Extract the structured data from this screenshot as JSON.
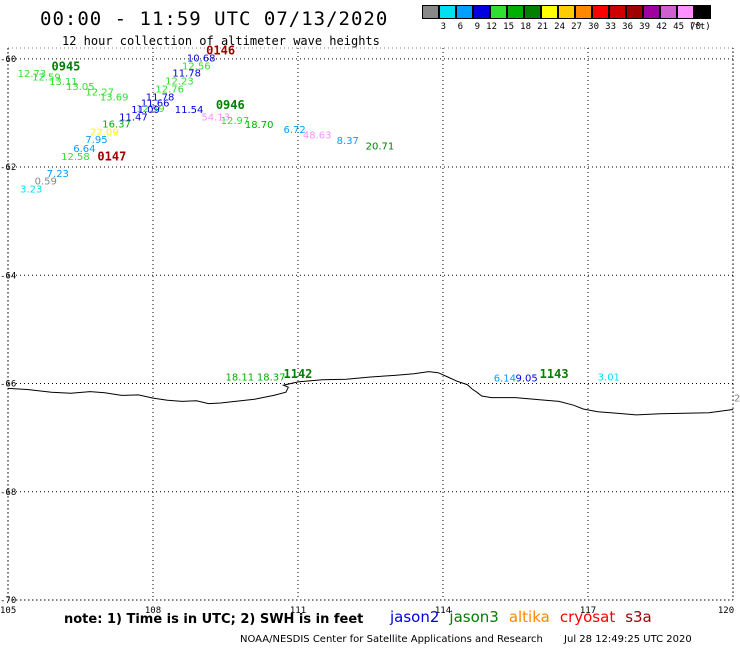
{
  "header": {
    "title": "00:00 - 11:59 UTC 07/13/2020",
    "subtitle": "12 hour collection of altimeter wave heights"
  },
  "legend": {
    "unit": "(ft)",
    "items": [
      {
        "label": "3",
        "color": "#888888"
      },
      {
        "label": "6",
        "color": "#00e0f0"
      },
      {
        "label": "9",
        "color": "#00a0ff"
      },
      {
        "label": "12",
        "color": "#0000e0"
      },
      {
        "label": "15",
        "color": "#30e030"
      },
      {
        "label": "18",
        "color": "#00b000"
      },
      {
        "label": "21",
        "color": "#008000"
      },
      {
        "label": "24",
        "color": "#ffff00"
      },
      {
        "label": "27",
        "color": "#ffcc00"
      },
      {
        "label": "30",
        "color": "#ff8800"
      },
      {
        "label": "33",
        "color": "#ff0000"
      },
      {
        "label": "36",
        "color": "#d00000"
      },
      {
        "label": "39",
        "color": "#a00000"
      },
      {
        "label": "42",
        "color": "#a000a0"
      },
      {
        "label": "45",
        "color": "#d060d0"
      },
      {
        "label": "70",
        "color": "#ff90ff"
      },
      {
        "label": "",
        "color": "#000000"
      }
    ]
  },
  "axes": {
    "lat_labels": [
      "-60",
      "-62",
      "-64",
      "-66",
      "-68",
      "-70"
    ],
    "lon_labels": [
      "105",
      "108",
      "111",
      "114",
      "117",
      "120"
    ]
  },
  "observations": [
    {
      "text": "10.68",
      "color": "#0000e0",
      "lon": 108.7,
      "lat": -60.05
    },
    {
      "text": "12.56",
      "color": "#30e030",
      "lon": 108.6,
      "lat": -60.2
    },
    {
      "text": "11.78",
      "color": "#0000e0",
      "lon": 108.4,
      "lat": -60.33
    },
    {
      "text": "12.23",
      "color": "#30e030",
      "lon": 108.25,
      "lat": -60.47
    },
    {
      "text": "12.76",
      "color": "#30e030",
      "lon": 108.05,
      "lat": -60.62
    },
    {
      "text": "11.78",
      "color": "#0000e0",
      "lon": 107.85,
      "lat": -60.77
    },
    {
      "text": "11.66",
      "color": "#0000e0",
      "lon": 107.75,
      "lat": -60.88
    },
    {
      "text": "12.59",
      "color": "#30e030",
      "lon": 107.65,
      "lat": -60.98
    },
    {
      "text": "11.09",
      "color": "#0000e0",
      "lon": 107.55,
      "lat": -61.0
    },
    {
      "text": "11.47",
      "color": "#0000e0",
      "lon": 107.3,
      "lat": -61.14
    },
    {
      "text": "16.37",
      "color": "#00b000",
      "lon": 106.95,
      "lat": -61.27
    },
    {
      "text": "22.09",
      "color": "#ffff00",
      "lon": 106.7,
      "lat": -61.42
    },
    {
      "text": "7.95",
      "color": "#00a0ff",
      "lon": 106.6,
      "lat": -61.56
    },
    {
      "text": "6.64",
      "color": "#00a0ff",
      "lon": 106.35,
      "lat": -61.72
    },
    {
      "text": "12.58",
      "color": "#30e030",
      "lon": 106.1,
      "lat": -61.87
    },
    {
      "text": "7.23",
      "color": "#00a0ff",
      "lon": 105.8,
      "lat": -62.18
    },
    {
      "text": "0.59",
      "color": "#888888",
      "lon": 105.55,
      "lat": -62.32
    },
    {
      "text": "3.23",
      "color": "#00e0f0",
      "lon": 105.25,
      "lat": -62.47
    },
    {
      "text": "12.73",
      "color": "#30e030",
      "lon": 105.2,
      "lat": -60.34
    },
    {
      "text": "12.59",
      "color": "#30e030",
      "lon": 105.5,
      "lat": -60.4
    },
    {
      "text": "13.11",
      "color": "#30e030",
      "lon": 105.85,
      "lat": -60.48
    },
    {
      "text": "13.05",
      "color": "#30e030",
      "lon": 106.2,
      "lat": -60.58
    },
    {
      "text": "12.27",
      "color": "#30e030",
      "lon": 106.6,
      "lat": -60.68
    },
    {
      "text": "13.69",
      "color": "#30e030",
      "lon": 106.9,
      "lat": -60.77
    },
    {
      "text": "11.54",
      "color": "#0000e0",
      "lon": 108.45,
      "lat": -61.0
    },
    {
      "text": "54.13",
      "color": "#ff90ff",
      "lon": 109.0,
      "lat": -61.14
    },
    {
      "text": "12.97",
      "color": "#30e030",
      "lon": 109.4,
      "lat": -61.2
    },
    {
      "text": "18.70",
      "color": "#00b000",
      "lon": 109.9,
      "lat": -61.28
    },
    {
      "text": "6.72",
      "color": "#00a0ff",
      "lon": 110.7,
      "lat": -61.37
    },
    {
      "text": "48.63",
      "color": "#ff90ff",
      "lon": 111.1,
      "lat": -61.47
    },
    {
      "text": "8.37",
      "color": "#00a0ff",
      "lon": 111.8,
      "lat": -61.57
    },
    {
      "text": "20.71",
      "color": "#008000",
      "lon": 112.4,
      "lat": -61.68
    },
    {
      "text": "18.11",
      "color": "#00b000",
      "lon": 109.5,
      "lat": -65.94
    },
    {
      "text": "18.37",
      "color": "#00b000",
      "lon": 110.15,
      "lat": -65.94
    },
    {
      "text": "6.14",
      "color": "#00a0ff",
      "lon": 115.05,
      "lat": -65.96
    },
    {
      "text": "9.05",
      "color": "#0000e0",
      "lon": 115.5,
      "lat": -65.96
    },
    {
      "text": "3.01",
      "color": "#00e0f0",
      "lon": 117.2,
      "lat": -65.94
    },
    {
      "text": "2",
      "color": "#888888",
      "lon": 120.1,
      "lat": -66.33
    }
  ],
  "passes": [
    {
      "text": "0146",
      "color": "#a00000",
      "lon": 109.1,
      "lat": -59.92
    },
    {
      "text": "0945",
      "color": "#008000",
      "lon": 105.9,
      "lat": -60.22
    },
    {
      "text": "0946",
      "color": "#008000",
      "lon": 109.3,
      "lat": -60.93
    },
    {
      "text": "0147",
      "color": "#a00000",
      "lon": 106.85,
      "lat": -61.88
    },
    {
      "text": "1142",
      "color": "#008000",
      "lon": 110.7,
      "lat": -65.9
    },
    {
      "text": "1143",
      "color": "#008000",
      "lon": 116.0,
      "lat": -65.9
    }
  ],
  "coastline": [
    [
      105.0,
      -66.09
    ],
    [
      105.4,
      -66.11
    ],
    [
      105.9,
      -66.16
    ],
    [
      106.3,
      -66.18
    ],
    [
      106.7,
      -66.15
    ],
    [
      107.0,
      -66.17
    ],
    [
      107.35,
      -66.22
    ],
    [
      107.7,
      -66.21
    ],
    [
      108.0,
      -66.27
    ],
    [
      108.3,
      -66.31
    ],
    [
      108.6,
      -66.33
    ],
    [
      108.9,
      -66.32
    ],
    [
      109.15,
      -66.37
    ],
    [
      109.4,
      -66.36
    ],
    [
      109.7,
      -66.33
    ],
    [
      110.1,
      -66.29
    ],
    [
      110.5,
      -66.22
    ],
    [
      110.75,
      -66.16
    ],
    [
      110.8,
      -66.07
    ],
    [
      110.7,
      -66.03
    ],
    [
      111.0,
      -65.97
    ],
    [
      111.5,
      -65.93
    ],
    [
      112.0,
      -65.92
    ],
    [
      112.5,
      -65.88
    ],
    [
      113.0,
      -65.85
    ],
    [
      113.4,
      -65.82
    ],
    [
      113.7,
      -65.78
    ],
    [
      113.9,
      -65.8
    ],
    [
      114.1,
      -65.88
    ],
    [
      114.3,
      -65.96
    ],
    [
      114.5,
      -66.02
    ],
    [
      114.6,
      -66.1
    ],
    [
      114.7,
      -66.16
    ],
    [
      114.8,
      -66.23
    ],
    [
      115.0,
      -66.26
    ],
    [
      115.5,
      -66.26
    ],
    [
      116.0,
      -66.3
    ],
    [
      116.4,
      -66.33
    ],
    [
      116.7,
      -66.4
    ],
    [
      116.9,
      -66.47
    ],
    [
      117.2,
      -66.52
    ],
    [
      117.6,
      -66.55
    ],
    [
      118.0,
      -66.58
    ],
    [
      118.5,
      -66.56
    ],
    [
      119.0,
      -66.55
    ],
    [
      119.5,
      -66.54
    ],
    [
      120.0,
      -66.48
    ]
  ],
  "footer": {
    "note": "note: 1) Time is in UTC; 2) SWH is in feet",
    "satellites": [
      {
        "name": "jason2",
        "color": "#0000e0"
      },
      {
        "name": "jason3",
        "color": "#008000"
      },
      {
        "name": "altika",
        "color": "#ff8800"
      },
      {
        "name": "cryosat",
        "color": "#ff0000"
      },
      {
        "name": "s3a",
        "color": "#a00000"
      }
    ],
    "credit": "NOAA/NESDIS Center for Satellite Applications and Research",
    "generated": "Jul 28 12:49:25 UTC 2020"
  }
}
